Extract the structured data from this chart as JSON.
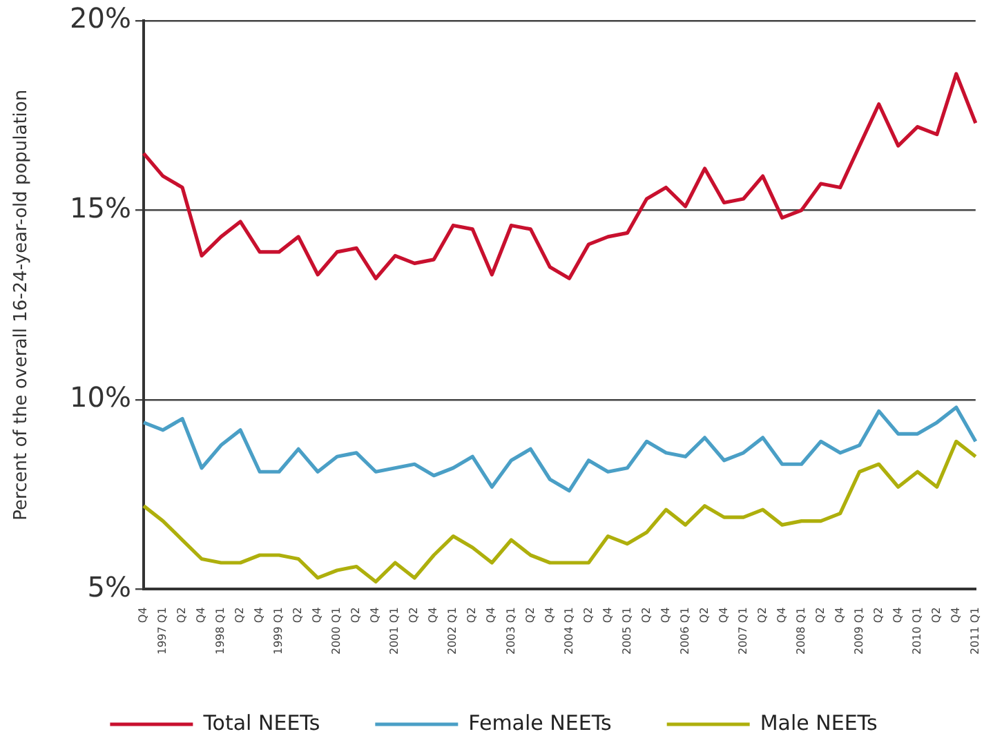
{
  "chart_data": {
    "type": "line",
    "ylabel": "Percent of the overall 16-24-year-old population",
    "categories": [
      "Q4",
      "1997 Q1",
      "Q2",
      "Q4",
      "1998 Q1",
      "Q2",
      "Q4",
      "1999 Q1",
      "Q2",
      "Q4",
      "2000 Q1",
      "Q2",
      "Q4",
      "2001 Q1",
      "Q2",
      "Q4",
      "2002 Q1",
      "Q2",
      "Q4",
      "2003 Q1",
      "Q2",
      "Q4",
      "2004 Q1",
      "Q2",
      "Q4",
      "2005 Q1",
      "Q2",
      "Q4",
      "2006 Q1",
      "Q2",
      "Q4",
      "2007 Q1",
      "Q2",
      "Q4",
      "2008 Q1",
      "Q2",
      "Q4",
      "2009 Q1",
      "Q2",
      "Q4",
      "2010 Q1",
      "Q2",
      "Q4",
      "2011 Q1"
    ],
    "series": [
      {
        "name": "Total NEETs",
        "color": "#c8102e",
        "values": [
          16.5,
          15.9,
          15.6,
          13.8,
          14.3,
          14.7,
          13.9,
          13.9,
          14.3,
          13.3,
          13.9,
          14.0,
          13.2,
          13.8,
          13.6,
          13.7,
          14.6,
          14.5,
          13.3,
          14.6,
          14.5,
          13.5,
          13.2,
          14.1,
          14.3,
          14.4,
          15.3,
          15.6,
          15.1,
          16.1,
          15.2,
          15.3,
          15.9,
          14.8,
          15.0,
          15.7,
          15.6,
          16.7,
          17.8,
          16.7,
          17.2,
          17.0,
          18.6,
          17.3
        ]
      },
      {
        "name": "Female NEETs",
        "color": "#4a9fc6",
        "values": [
          9.4,
          9.2,
          9.5,
          8.2,
          8.8,
          9.2,
          8.1,
          8.1,
          8.7,
          8.1,
          8.5,
          8.6,
          8.1,
          8.2,
          8.3,
          8.0,
          8.2,
          8.5,
          7.7,
          8.4,
          8.7,
          7.9,
          7.6,
          8.4,
          8.1,
          8.2,
          8.9,
          8.6,
          8.5,
          9.0,
          8.4,
          8.6,
          9.0,
          8.3,
          8.3,
          8.9,
          8.6,
          8.8,
          9.7,
          9.1,
          9.1,
          9.4,
          9.8,
          8.9
        ]
      },
      {
        "name": "Male NEETs",
        "color": "#aeaf0c",
        "values": [
          7.2,
          6.8,
          6.3,
          5.8,
          5.7,
          5.7,
          5.9,
          5.9,
          5.8,
          5.3,
          5.5,
          5.6,
          5.2,
          5.7,
          5.3,
          5.9,
          6.4,
          6.1,
          5.7,
          6.3,
          5.9,
          5.7,
          5.7,
          5.7,
          6.4,
          6.2,
          6.5,
          7.1,
          6.7,
          7.2,
          6.9,
          6.9,
          7.1,
          6.7,
          6.8,
          6.8,
          7.0,
          8.1,
          8.3,
          7.7,
          8.1,
          7.7,
          8.9,
          8.5
        ]
      }
    ],
    "ylim": [
      5,
      20
    ],
    "yticks": [
      {
        "value": 5,
        "label": "5%"
      },
      {
        "value": 10,
        "label": "10%"
      },
      {
        "value": 15,
        "label": "15%"
      },
      {
        "value": 20,
        "label": "20%"
      }
    ],
    "grid": "y",
    "legend": "bottom",
    "marker": "none",
    "line_style": "solid"
  }
}
